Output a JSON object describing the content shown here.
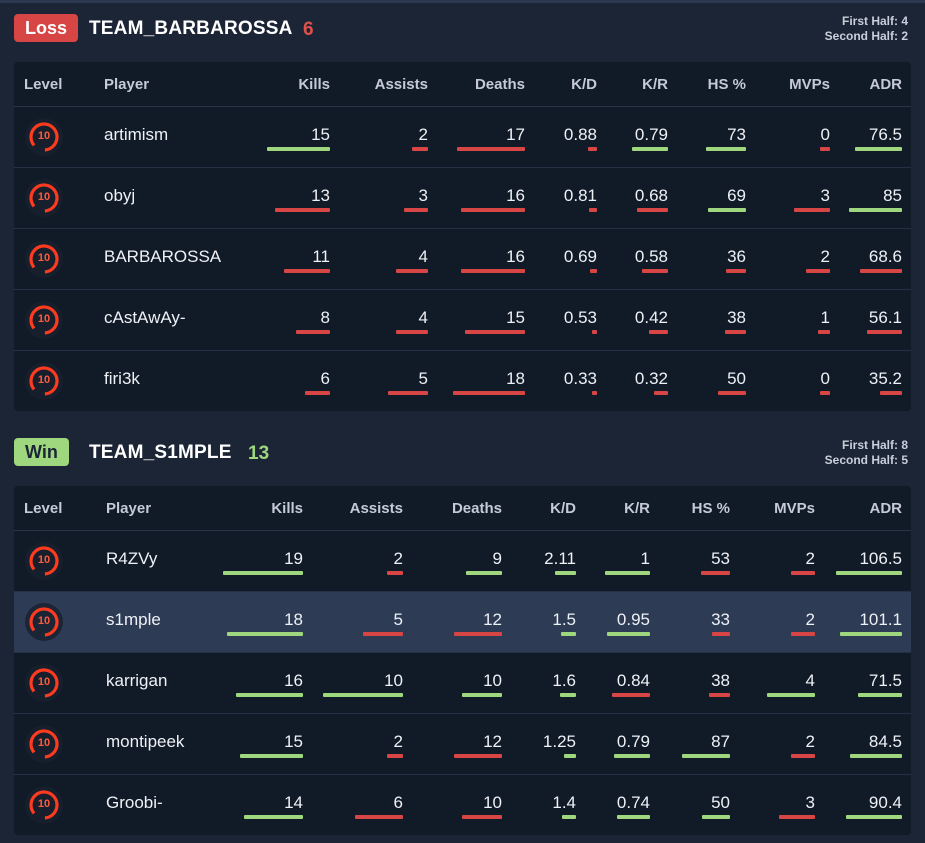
{
  "colors": {
    "green": "#9ed77e",
    "red": "#d84545",
    "loss_badge": "#d84545",
    "win_badge": "#9ed77e"
  },
  "teams": [
    {
      "result": "Loss",
      "name": "TEAM_BARBAROSSA",
      "score": "6",
      "first_half": "First Half: 4",
      "second_half": "Second Half: 2",
      "headers": [
        "Level",
        "Player",
        "Kills",
        "Assists",
        "Deaths",
        "K/D",
        "K/R",
        "HS %",
        "MVPs",
        "ADR"
      ],
      "players": [
        {
          "level": "10",
          "name": "artimism",
          "stats": [
            "15",
            "2",
            "17",
            "0.88",
            "0.79",
            "73",
            "0",
            "76.5"
          ]
        },
        {
          "level": "10",
          "name": "obyj",
          "stats": [
            "13",
            "3",
            "16",
            "0.81",
            "0.68",
            "69",
            "3",
            "85"
          ]
        },
        {
          "level": "10",
          "name": "BARBAROSSA",
          "stats": [
            "11",
            "4",
            "16",
            "0.69",
            "0.58",
            "36",
            "2",
            "68.6"
          ]
        },
        {
          "level": "10",
          "name": "cAstAwAy-",
          "stats": [
            "8",
            "4",
            "15",
            "0.53",
            "0.42",
            "38",
            "1",
            "56.1"
          ]
        },
        {
          "level": "10",
          "name": "firi3k",
          "stats": [
            "6",
            "5",
            "18",
            "0.33",
            "0.32",
            "50",
            "0",
            "35.2"
          ]
        }
      ]
    },
    {
      "result": "Win",
      "name": "TEAM_S1MPLE",
      "score": "13",
      "first_half": "First Half: 8",
      "second_half": "Second Half: 5",
      "headers": [
        "Level",
        "Player",
        "Kills",
        "Assists",
        "Deaths",
        "K/D",
        "K/R",
        "HS %",
        "MVPs",
        "ADR"
      ],
      "players": [
        {
          "level": "10",
          "name": "R4ZVy",
          "stats": [
            "19",
            "2",
            "9",
            "2.11",
            "1",
            "53",
            "2",
            "106.5"
          ]
        },
        {
          "level": "10",
          "name": "s1mple",
          "stats": [
            "18",
            "5",
            "12",
            "1.5",
            "0.95",
            "33",
            "2",
            "101.1"
          ]
        },
        {
          "level": "10",
          "name": "karrigan",
          "stats": [
            "16",
            "10",
            "10",
            "1.6",
            "0.84",
            "38",
            "4",
            "71.5"
          ]
        },
        {
          "level": "10",
          "name": "montipeek",
          "stats": [
            "15",
            "2",
            "12",
            "1.25",
            "0.79",
            "87",
            "2",
            "84.5"
          ]
        },
        {
          "level": "10",
          "name": "Groobi-",
          "stats": [
            "14",
            "6",
            "10",
            "1.4",
            "0.74",
            "50",
            "3",
            "90.4"
          ]
        }
      ]
    }
  ]
}
